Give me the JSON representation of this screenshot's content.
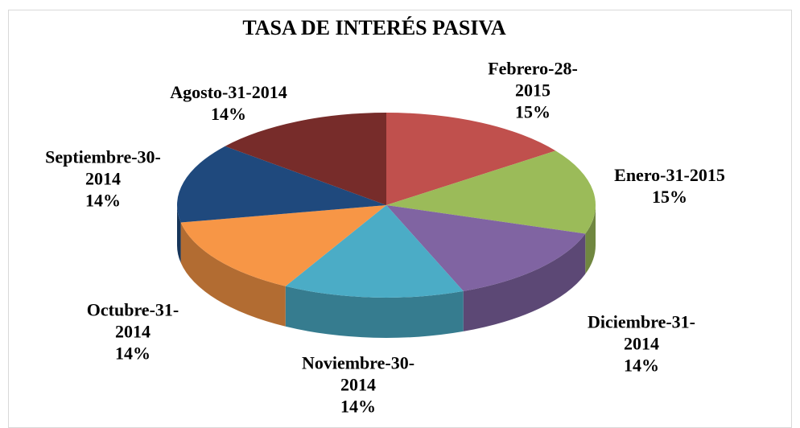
{
  "chart_data": {
    "type": "pie",
    "title": "TASA DE INTERÉS PASIVA",
    "categories": [
      "Febrero-28-2015",
      "Enero-31-2015",
      "Diciembre-31-2014",
      "Noviembre-30-2014",
      "Octubre-31-2014",
      "Septiembre-30-2014",
      "Agosto-31-2014"
    ],
    "values": [
      15,
      15,
      14,
      14,
      14,
      14,
      14
    ],
    "value_labels": [
      "15%",
      "15%",
      "14%",
      "14%",
      "14%",
      "14%",
      "14%"
    ],
    "colors": [
      "#c0504d",
      "#9bbb59",
      "#8064a2",
      "#4bacc6",
      "#f79646",
      "#1f497d",
      "#772c2a"
    ]
  }
}
